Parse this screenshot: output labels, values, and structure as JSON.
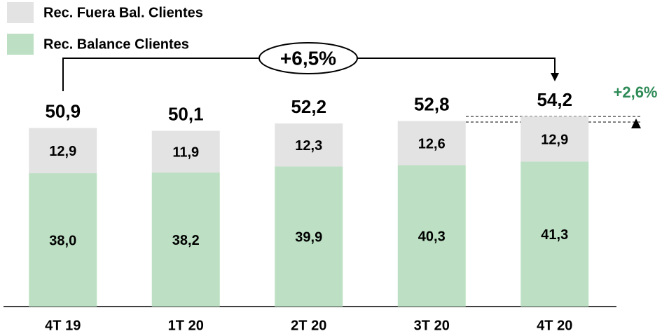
{
  "chart_data": {
    "type": "stacked_bar",
    "categories": [
      "4T 19",
      "1T 20",
      "2T 20",
      "3T 20",
      "4T 20"
    ],
    "series": [
      {
        "name": "Rec. Balance Clientes",
        "color": "#bde0c4",
        "values": [
          38.0,
          38.2,
          39.9,
          40.3,
          41.3
        ],
        "value_labels": [
          "38,0",
          "38,2",
          "39,9",
          "40,3",
          "41,3"
        ]
      },
      {
        "name": "Rec. Fuera Bal. Clientes",
        "color": "#e3e3e3",
        "values": [
          12.9,
          11.9,
          12.3,
          12.6,
          12.9
        ],
        "value_labels": [
          "12,9",
          "11,9",
          "12,3",
          "12,6",
          "12,9"
        ]
      }
    ],
    "totals": {
      "values": [
        50.9,
        50.1,
        52.2,
        52.8,
        54.2
      ],
      "value_labels": [
        "50,9",
        "50,1",
        "52,2",
        "52,8",
        "54,2"
      ]
    },
    "annotations": [
      "+6,5%",
      "+2,6%"
    ],
    "ylim": [
      0,
      60
    ]
  }
}
